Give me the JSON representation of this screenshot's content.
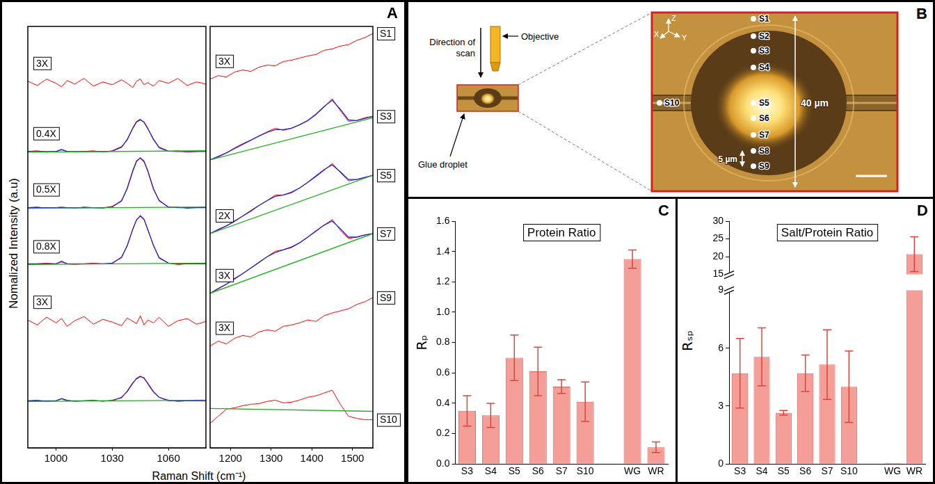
{
  "chart_data": [
    {
      "type": "line",
      "letter": "A",
      "y_label": "Nomalized Intensity (a.u)",
      "x_label": "Raman Shift (cm⁻¹)",
      "xlim": [
        985,
        1080
      ],
      "xticks": [
        1000,
        1030,
        1060
      ],
      "ylim": [
        0,
        6
      ],
      "tick_labels": "x",
      "grid": false,
      "x": [
        985,
        990,
        995,
        1000,
        1003,
        1006,
        1010,
        1015,
        1020,
        1025,
        1030,
        1035,
        1038,
        1041,
        1043,
        1045,
        1047,
        1049,
        1052,
        1055,
        1060,
        1065,
        1070,
        1075,
        1080
      ],
      "series": [
        {
          "annotation": "3X",
          "color": "#ff0000",
          "values": [
            5.22,
            5.16,
            5.25,
            5.19,
            5.14,
            5.23,
            5.18,
            5.26,
            5.15,
            5.21,
            5.17,
            5.24,
            5.19,
            5.13,
            5.22,
            5.25,
            5.17,
            5.2,
            5.15,
            5.23,
            5.19,
            5.26,
            5.16,
            5.21,
            5.18
          ]
        },
        {
          "annotation": "0.4X",
          "color": "#ff0000",
          "values": [
            4.22,
            4.23,
            4.21,
            4.22,
            4.25,
            4.22,
            4.21,
            4.22,
            4.23,
            4.21,
            4.23,
            4.29,
            4.38,
            4.56,
            4.65,
            4.68,
            4.63,
            4.54,
            4.4,
            4.27,
            4.22,
            4.23,
            4.21,
            4.22,
            4.23
          ],
          "fit": {
            "color": "#2020cc",
            "values": [
              4.22,
              4.22,
              4.22,
              4.22,
              4.245,
              4.22,
              4.22,
              4.22,
              4.22,
              4.22,
              4.225,
              4.28,
              4.39,
              4.55,
              4.64,
              4.67,
              4.64,
              4.55,
              4.39,
              4.28,
              4.225,
              4.22,
              4.22,
              4.22,
              4.22
            ]
          },
          "baseline": {
            "color": "#20b020",
            "x": [
              985,
              1080
            ],
            "values": [
              4.21,
              4.23
            ]
          }
        },
        {
          "annotation": "0.5X",
          "color": "#ff0000",
          "values": [
            3.42,
            3.43,
            3.41,
            3.42,
            3.43,
            3.42,
            3.41,
            3.43,
            3.42,
            3.41,
            3.44,
            3.51,
            3.7,
            3.95,
            4.09,
            4.12,
            4.07,
            3.95,
            3.68,
            3.53,
            3.42,
            3.43,
            3.41,
            3.42,
            3.43
          ],
          "fit": {
            "color": "#2020cc",
            "values": [
              3.42,
              3.42,
              3.42,
              3.42,
              3.42,
              3.42,
              3.42,
              3.42,
              3.42,
              3.42,
              3.43,
              3.52,
              3.69,
              3.94,
              4.08,
              4.13,
              4.08,
              3.94,
              3.69,
              3.52,
              3.43,
              3.42,
              3.42,
              3.42,
              3.42
            ]
          },
          "baseline": {
            "color": "#20b020",
            "x": [
              985,
              1080
            ],
            "values": [
              3.41,
              3.43
            ]
          }
        },
        {
          "annotation": "0.8X",
          "color": "#ff0000",
          "values": [
            2.61,
            2.62,
            2.63,
            2.62,
            2.66,
            2.62,
            2.61,
            2.62,
            2.63,
            2.62,
            2.62,
            2.72,
            2.87,
            3.12,
            3.24,
            3.31,
            3.26,
            3.1,
            2.89,
            2.7,
            2.63,
            2.61,
            2.62,
            2.63,
            2.62
          ],
          "fit": {
            "color": "#2020cc",
            "values": [
              2.62,
              2.62,
              2.62,
              2.62,
              2.65,
              2.62,
              2.62,
              2.62,
              2.62,
              2.62,
              2.63,
              2.71,
              2.88,
              3.11,
              3.25,
              3.3,
              3.25,
              3.11,
              2.88,
              2.71,
              2.63,
              2.62,
              2.62,
              2.62,
              2.62
            ]
          },
          "baseline": {
            "color": "#20b020",
            "x": [
              985,
              1080
            ],
            "values": [
              2.61,
              2.63
            ]
          }
        },
        {
          "annotation": "3X",
          "color": "#ff0000",
          "values": [
            1.82,
            1.75,
            1.86,
            1.78,
            1.84,
            1.73,
            1.81,
            1.87,
            1.76,
            1.83,
            1.79,
            1.74,
            1.85,
            1.8,
            1.77,
            1.88,
            1.75,
            1.82,
            1.78,
            1.86,
            1.73,
            1.81,
            1.84,
            1.76,
            1.8
          ]
        },
        {
          "color": "#ff0000",
          "values": [
            0.67,
            0.68,
            0.66,
            0.67,
            0.7,
            0.68,
            0.66,
            0.67,
            0.68,
            0.66,
            0.68,
            0.71,
            0.81,
            0.93,
            0.98,
            1.01,
            1.0,
            0.91,
            0.79,
            0.72,
            0.68,
            0.66,
            0.67,
            0.68,
            0.67
          ],
          "fit": {
            "color": "#2020cc",
            "values": [
              0.67,
              0.67,
              0.67,
              0.67,
              0.7,
              0.67,
              0.67,
              0.67,
              0.67,
              0.67,
              0.67,
              0.72,
              0.8,
              0.92,
              0.99,
              1.02,
              0.99,
              0.92,
              0.8,
              0.72,
              0.67,
              0.67,
              0.67,
              0.67,
              0.67
            ]
          },
          "baseline": {
            "color": "#20b020",
            "x": [
              985,
              1080
            ],
            "values": [
              0.66,
              0.68
            ]
          }
        }
      ]
    },
    {
      "type": "line",
      "xlim": [
        1150,
        1550
      ],
      "xticks": [
        1200,
        1300,
        1400,
        1500
      ],
      "ylim": [
        0,
        6
      ],
      "tick_labels": "x",
      "grid": false,
      "x": [
        1150,
        1170,
        1190,
        1210,
        1230,
        1250,
        1270,
        1290,
        1310,
        1330,
        1350,
        1370,
        1390,
        1410,
        1430,
        1450,
        1470,
        1490,
        1510,
        1530,
        1550
      ],
      "series": [
        {
          "sample": "S1",
          "annotation": "3X",
          "color": "#ff0000",
          "values": [
            5.25,
            5.3,
            5.28,
            5.35,
            5.38,
            5.36,
            5.42,
            5.45,
            5.44,
            5.5,
            5.52,
            5.55,
            5.58,
            5.6,
            5.66,
            5.68,
            5.72,
            5.74,
            5.8,
            5.84,
            5.9
          ]
        },
        {
          "sample": "S3",
          "color": "#ff0000",
          "values": [
            4.1,
            4.14,
            4.2,
            4.27,
            4.33,
            4.38,
            4.44,
            4.5,
            4.55,
            4.52,
            4.55,
            4.6,
            4.66,
            4.74,
            4.85,
            4.97,
            4.8,
            4.65,
            4.66,
            4.7,
            4.72
          ],
          "fit": {
            "color": "#2020cc",
            "values": [
              4.1,
              4.15,
              4.2,
              4.26,
              4.32,
              4.38,
              4.44,
              4.49,
              4.53,
              4.53,
              4.55,
              4.6,
              4.66,
              4.75,
              4.86,
              4.95,
              4.82,
              4.67,
              4.66,
              4.69,
              4.72
            ]
          },
          "baseline": {
            "color": "#20b020",
            "x": [
              1150,
              1550
            ],
            "values": [
              4.1,
              4.7
            ]
          }
        },
        {
          "sample": "S5",
          "annotation": "2X",
          "color": "#ff0000",
          "values": [
            3.05,
            3.1,
            3.16,
            3.22,
            3.3,
            3.38,
            3.45,
            3.52,
            3.6,
            3.6,
            3.63,
            3.7,
            3.78,
            3.86,
            3.95,
            4.05,
            3.92,
            3.8,
            3.82,
            3.85,
            3.88
          ],
          "fit": {
            "color": "#2020cc",
            "values": [
              3.05,
              3.11,
              3.16,
              3.23,
              3.3,
              3.37,
              3.45,
              3.52,
              3.58,
              3.6,
              3.64,
              3.7,
              3.78,
              3.87,
              3.96,
              4.03,
              3.93,
              3.82,
              3.82,
              3.85,
              3.88
            ]
          },
          "baseline": {
            "color": "#20b020",
            "x": [
              1150,
              1550
            ],
            "values": [
              3.05,
              3.88
            ]
          }
        },
        {
          "sample": "S7",
          "annotation": "3X",
          "color": "#ff0000",
          "values": [
            2.2,
            2.26,
            2.33,
            2.4,
            2.48,
            2.56,
            2.64,
            2.72,
            2.8,
            2.82,
            2.85,
            2.92,
            3.0,
            3.08,
            3.17,
            3.25,
            3.1,
            2.98,
            3.0,
            3.03,
            3.05
          ],
          "fit": {
            "color": "#2020cc",
            "values": [
              2.2,
              2.27,
              2.33,
              2.41,
              2.48,
              2.56,
              2.64,
              2.72,
              2.78,
              2.82,
              2.86,
              2.92,
              3.0,
              3.09,
              3.17,
              3.23,
              3.12,
              3.0,
              3.0,
              3.03,
              3.05
            ]
          },
          "baseline": {
            "color": "#20b020",
            "x": [
              1150,
              1550
            ],
            "values": [
              2.2,
              3.05
            ]
          }
        },
        {
          "sample": "S9",
          "annotation": "3X",
          "color": "#ff0000",
          "values": [
            1.45,
            1.52,
            1.48,
            1.56,
            1.6,
            1.58,
            1.65,
            1.68,
            1.66,
            1.73,
            1.75,
            1.78,
            1.82,
            1.8,
            1.88,
            1.92,
            1.95,
            1.98,
            2.04,
            2.08,
            2.14
          ]
        },
        {
          "sample": "S10",
          "color": "#ff0000",
          "values": [
            0.35,
            0.45,
            0.55,
            0.57,
            0.6,
            0.62,
            0.63,
            0.66,
            0.68,
            0.64,
            0.65,
            0.68,
            0.72,
            0.74,
            0.78,
            0.82,
            0.62,
            0.45,
            0.42,
            0.4,
            0.4
          ],
          "baseline": {
            "color": "#20b020",
            "x": [
              1150,
              1550
            ],
            "values": [
              0.56,
              0.52
            ]
          }
        }
      ]
    },
    {
      "type": "bar",
      "letter": "C",
      "title": "Protein Ratio",
      "y_label": "Rₚ",
      "categories": [
        "S3",
        "S4",
        "S5",
        "S6",
        "S7",
        "S10",
        null,
        "WG",
        "WR"
      ],
      "values": [
        0.35,
        0.32,
        0.7,
        0.61,
        0.51,
        0.41,
        null,
        1.35,
        0.11
      ],
      "errors": [
        0.1,
        0.08,
        0.15,
        0.16,
        0.045,
        0.13,
        null,
        0.06,
        0.035
      ],
      "color": "#f59d97",
      "ylim": [
        0,
        1.6
      ],
      "yticks": [
        {
          "value": 0,
          "label": "0.0"
        },
        0.2,
        0.4,
        0.6,
        0.8,
        {
          "value": 1,
          "label": "1.0"
        },
        1.2,
        1.4,
        1.6
      ],
      "grid": false
    },
    {
      "type": "bar",
      "letter": "D",
      "title": "Salt/Protein Ratio",
      "y_label": "Rₛₚ",
      "categories": [
        "S3",
        "S4",
        "S5",
        "S6",
        "S7",
        "S10",
        null,
        "WG",
        "WR"
      ],
      "values": [
        4.7,
        5.55,
        2.65,
        4.7,
        5.15,
        4.0,
        null,
        0.05,
        20.7
      ],
      "errors": [
        1.8,
        1.5,
        0.12,
        0.95,
        1.8,
        1.85,
        null,
        null,
        4.9
      ],
      "color": "#f59d97",
      "ylim": [
        0,
        30
      ],
      "yticks": [
        0,
        3,
        6,
        9,
        15,
        20,
        25,
        30
      ],
      "y_break": [
        9,
        15
      ],
      "grid": false
    }
  ],
  "diagram": {
    "letter": "B",
    "scan_label": "Direction of scan",
    "objective_label": "Objective",
    "droplet_label": "Glue droplet",
    "axis_labels": [
      "X",
      "Y",
      "Z"
    ],
    "points": [
      "S1",
      "S2",
      "S3",
      "S4",
      "S5",
      "S6",
      "S7",
      "S8",
      "S9"
    ],
    "side_point": "S10",
    "height_label": "40 µm",
    "step_label": "5 µm"
  }
}
